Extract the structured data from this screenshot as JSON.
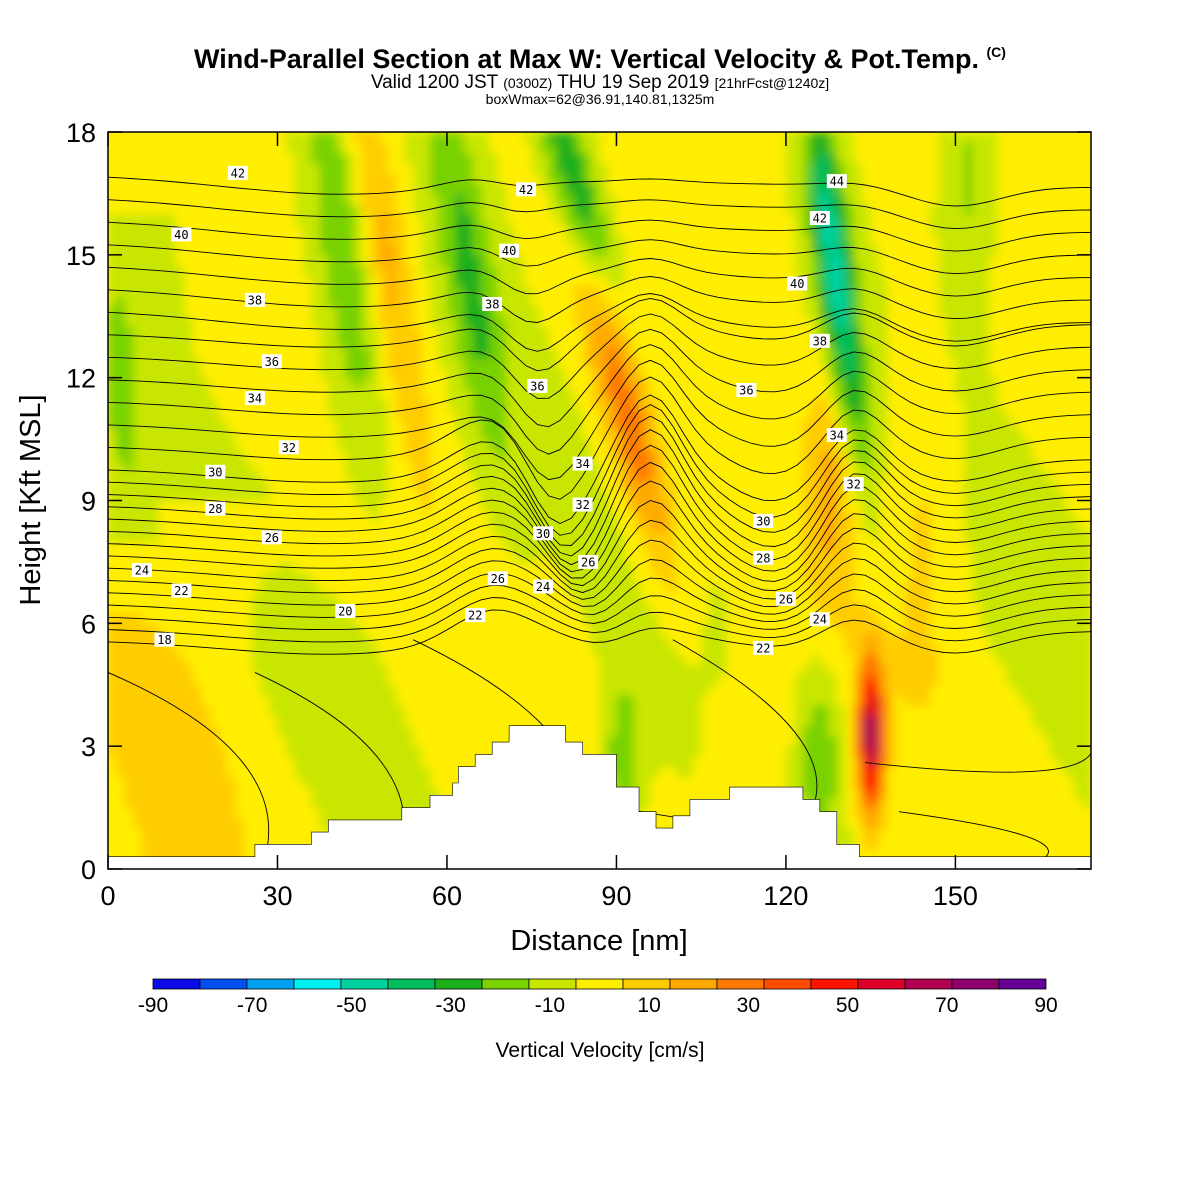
{
  "header": {
    "title": "Wind-Parallel Section at Max W: Vertical Velocity & Pot.Temp.",
    "title_mark": "(C)",
    "valid_prefix": "Valid 1200 JST",
    "valid_utc": "(0300Z)",
    "valid_date": "THU 19 Sep 2019",
    "forecast": "[21hrFcst@1240z]",
    "box_info": "boxWmax=62@36.91,140.81,1325m"
  },
  "chart_data": {
    "type": "heatmap",
    "xlabel": "Distance [nm]",
    "ylabel": "Height [Kft MSL]",
    "xlim": [
      0,
      174
    ],
    "ylim": [
      0,
      18
    ],
    "x_ticks": [
      0,
      30,
      60,
      90,
      120,
      150
    ],
    "y_ticks": [
      0,
      3,
      6,
      9,
      12,
      15,
      18
    ],
    "colorbar": {
      "label": "Vertical Velocity [cm/s]",
      "levels": [
        -90,
        -80,
        -70,
        -60,
        -50,
        -40,
        -30,
        -20,
        -10,
        0,
        10,
        20,
        30,
        40,
        50,
        60,
        70,
        80,
        90
      ],
      "tick_labels": [
        "-90",
        "-70",
        "-50",
        "-30",
        "-10",
        "10",
        "30",
        "50",
        "70",
        "90"
      ],
      "colors": [
        "#0a0ae6",
        "#0050f0",
        "#00a0f0",
        "#00f0f0",
        "#00d2a0",
        "#00be5a",
        "#1eaf1e",
        "#78d200",
        "#c8e600",
        "#ffee00",
        "#ffcc00",
        "#ffaa00",
        "#ff7800",
        "#ff4b00",
        "#ff1400",
        "#dc0028",
        "#b00050",
        "#8c006e",
        "#640096"
      ]
    },
    "terrain": [
      [
        0,
        0.3
      ],
      [
        26,
        0.3
      ],
      [
        26,
        0.6
      ],
      [
        36,
        0.6
      ],
      [
        36,
        0.9
      ],
      [
        39,
        0.9
      ],
      [
        39,
        1.2
      ],
      [
        52,
        1.2
      ],
      [
        52,
        1.5
      ],
      [
        57,
        1.5
      ],
      [
        57,
        1.8
      ],
      [
        61,
        1.8
      ],
      [
        61,
        2.1
      ],
      [
        62,
        2.1
      ],
      [
        62,
        2.5
      ],
      [
        65,
        2.5
      ],
      [
        65,
        2.8
      ],
      [
        68,
        2.8
      ],
      [
        68,
        3.1
      ],
      [
        71,
        3.1
      ],
      [
        71,
        3.5
      ],
      [
        81,
        3.5
      ],
      [
        81,
        3.1
      ],
      [
        84,
        3.1
      ],
      [
        84,
        2.8
      ],
      [
        90,
        2.8
      ],
      [
        90,
        2.0
      ],
      [
        94,
        2.0
      ],
      [
        94,
        1.4
      ],
      [
        97,
        1.4
      ],
      [
        97,
        1.0
      ],
      [
        100,
        1.0
      ],
      [
        100,
        1.3
      ],
      [
        103,
        1.3
      ],
      [
        103,
        1.7
      ],
      [
        110,
        1.7
      ],
      [
        110,
        2.0
      ],
      [
        123,
        2.0
      ],
      [
        123,
        1.7
      ],
      [
        126,
        1.7
      ],
      [
        126,
        1.4
      ],
      [
        129,
        1.4
      ],
      [
        129,
        0.6
      ],
      [
        133,
        0.6
      ],
      [
        133,
        0.3
      ],
      [
        174,
        0.3
      ]
    ],
    "theta_contours": [
      {
        "label": "18",
        "x": 10,
        "y": 5.6
      },
      {
        "label": "20",
        "x": 42,
        "y": 6.3
      },
      {
        "label": "22",
        "x": 13,
        "y": 6.8
      },
      {
        "label": "22",
        "x": 65,
        "y": 6.2
      },
      {
        "label": "22",
        "x": 116,
        "y": 5.4
      },
      {
        "label": "24",
        "x": 6,
        "y": 7.3
      },
      {
        "label": "24",
        "x": 77,
        "y": 6.9
      },
      {
        "label": "24",
        "x": 126,
        "y": 6.1
      },
      {
        "label": "26",
        "x": 29,
        "y": 8.1
      },
      {
        "label": "26",
        "x": 69,
        "y": 7.1
      },
      {
        "label": "26",
        "x": 85,
        "y": 7.5
      },
      {
        "label": "26",
        "x": 120,
        "y": 6.6
      },
      {
        "label": "28",
        "x": 19,
        "y": 8.8
      },
      {
        "label": "28",
        "x": 116,
        "y": 7.6
      },
      {
        "label": "30",
        "x": 19,
        "y": 9.7
      },
      {
        "label": "30",
        "x": 77,
        "y": 8.2
      },
      {
        "label": "30",
        "x": 116,
        "y": 8.5
      },
      {
        "label": "32",
        "x": 32,
        "y": 10.3
      },
      {
        "label": "32",
        "x": 84,
        "y": 8.9
      },
      {
        "label": "32",
        "x": 132,
        "y": 9.4
      },
      {
        "label": "34",
        "x": 26,
        "y": 11.5
      },
      {
        "label": "34",
        "x": 84,
        "y": 9.9
      },
      {
        "label": "34",
        "x": 129,
        "y": 10.6
      },
      {
        "label": "36",
        "x": 29,
        "y": 12.4
      },
      {
        "label": "36",
        "x": 76,
        "y": 11.8
      },
      {
        "label": "36",
        "x": 113,
        "y": 11.7
      },
      {
        "label": "38",
        "x": 26,
        "y": 13.9
      },
      {
        "label": "38",
        "x": 68,
        "y": 13.8
      },
      {
        "label": "38",
        "x": 126,
        "y": 12.9
      },
      {
        "label": "40",
        "x": 13,
        "y": 15.5
      },
      {
        "label": "40",
        "x": 71,
        "y": 15.1
      },
      {
        "label": "40",
        "x": 122,
        "y": 14.3
      },
      {
        "label": "42",
        "x": 23,
        "y": 17.0
      },
      {
        "label": "42",
        "x": 74,
        "y": 16.6
      },
      {
        "label": "42",
        "x": 126,
        "y": 15.9
      },
      {
        "label": "44",
        "x": 129,
        "y": 16.8
      }
    ]
  }
}
